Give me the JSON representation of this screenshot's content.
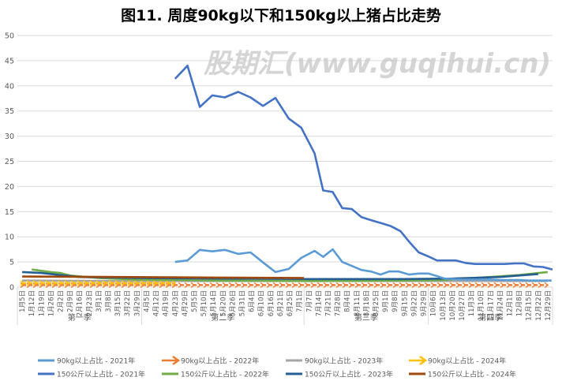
{
  "chart_data": {
    "type": "line",
    "title": "图11. 周度90kg以下和150kg以上猪占比走势",
    "xlabel": "",
    "ylabel": "",
    "ylim": [
      0,
      50
    ],
    "yticks": [
      0,
      5,
      10,
      15,
      20,
      25,
      30,
      35,
      40,
      45,
      50
    ],
    "grid": true,
    "legend_position": "bottom",
    "categories": [
      "1月5日",
      "1月12日",
      "1月19日",
      "1月26日",
      "2月2日",
      "2月9日",
      "2月16日",
      "2月23日",
      "3月1日",
      "3月8日",
      "3月15日",
      "3月22日",
      "3月29日",
      "4月5日",
      "4月12日",
      "4月19日",
      "4月23日",
      "4月29日",
      "5月5日",
      "5月10日",
      "5月14日",
      "5月20日",
      "5月26日",
      "5月31日",
      "6月4日",
      "6月10日",
      "6月16日",
      "6月21日",
      "6月25日",
      "7月1日",
      "7月7日",
      "7月14日",
      "7月21日",
      "7月28日",
      "8月4日",
      "8月11日",
      "8月18日",
      "8月25日",
      "9月1日",
      "9月8日",
      "9月15日",
      "9月22日",
      "9月29日",
      "10月6日",
      "10月13日",
      "10月20日",
      "10月27日",
      "11月3日",
      "11月10日",
      "11月17日",
      "11月24日",
      "12月1日",
      "12月8日",
      "12月15日",
      "12月22日",
      "12月29日"
    ],
    "quarters": [
      {
        "label": "第一季",
        "start": 0,
        "end": 13
      },
      {
        "label": "第二季",
        "start": 13,
        "end": 30
      },
      {
        "label": "第三季",
        "start": 30,
        "end": 43
      },
      {
        "label": "第四季",
        "start": 43,
        "end": 56
      }
    ],
    "series": [
      {
        "name": "90kg以上占比 - 2021年",
        "color": "#5b9bd5",
        "style": "line",
        "points": [
          [
            16,
            5.0
          ],
          [
            17.3,
            5.3
          ],
          [
            18.6,
            7.4
          ],
          [
            19.9,
            7.1
          ],
          [
            21.2,
            7.4
          ],
          [
            22.6,
            6.6
          ],
          [
            23.9,
            6.9
          ],
          [
            25.2,
            4.9
          ],
          [
            26.5,
            3.0
          ],
          [
            27.9,
            3.6
          ],
          [
            29.2,
            5.8
          ],
          [
            30.6,
            7.2
          ],
          [
            31.5,
            6.0
          ],
          [
            32.5,
            7.5
          ],
          [
            33.5,
            5.0
          ],
          [
            34.5,
            4.2
          ],
          [
            35.5,
            3.4
          ],
          [
            36.5,
            3.1
          ],
          [
            37.5,
            2.5
          ],
          [
            38.4,
            3.1
          ],
          [
            39.4,
            3.1
          ],
          [
            40.5,
            2.5
          ],
          [
            41.5,
            2.7
          ],
          [
            42.5,
            2.7
          ],
          [
            43.4,
            2.2
          ],
          [
            44.2,
            1.7
          ],
          [
            45,
            1.6
          ],
          [
            46,
            1.5
          ],
          [
            47,
            1.5
          ],
          [
            48,
            1.5
          ],
          [
            49,
            1.5
          ],
          [
            50,
            1.4
          ],
          [
            51,
            1.4
          ],
          [
            52,
            1.4
          ],
          [
            53,
            1.3
          ],
          [
            54,
            1.3
          ],
          [
            55.4,
            1.3
          ]
        ]
      },
      {
        "name": "90kg以上占比 - 2022年",
        "color": "#ed7d31",
        "style": "arrow",
        "points": [
          [
            0,
            0.4
          ],
          [
            5,
            0.4
          ],
          [
            10,
            0.4
          ],
          [
            15,
            0.4
          ],
          [
            20,
            0.4
          ],
          [
            25,
            0.4
          ],
          [
            30,
            0.4
          ],
          [
            35,
            0.4
          ],
          [
            40,
            0.4
          ],
          [
            45,
            0.4
          ],
          [
            50,
            0.4
          ],
          [
            55,
            0.4
          ]
        ]
      },
      {
        "name": "90kg以上占比 - 2023年",
        "color": "#a5a5a5",
        "style": "line",
        "points": [
          [
            0,
            1.3
          ],
          [
            10,
            1.2
          ],
          [
            20,
            1.2
          ],
          [
            30,
            1.2
          ],
          [
            40,
            1.2
          ],
          [
            50,
            1.2
          ],
          [
            55,
            1.2
          ]
        ]
      },
      {
        "name": "90kg以上占比 - 2024年",
        "color": "#ffc000",
        "style": "arrow",
        "points": [
          [
            0,
            0.8
          ],
          [
            4,
            0.8
          ],
          [
            8,
            0.8
          ],
          [
            12,
            0.8
          ],
          [
            16,
            0.8
          ]
        ]
      },
      {
        "name": "150公斤以上占比 - 2021年",
        "color": "#4472c4",
        "style": "line",
        "points": [
          [
            16,
            41.4
          ],
          [
            17.3,
            44.0
          ],
          [
            18.6,
            35.8
          ],
          [
            19.9,
            38.1
          ],
          [
            21.2,
            37.7
          ],
          [
            22.6,
            38.8
          ],
          [
            23.9,
            37.7
          ],
          [
            25.2,
            36.0
          ],
          [
            26.5,
            37.6
          ],
          [
            27.9,
            33.5
          ],
          [
            29.2,
            31.7
          ],
          [
            30.6,
            26.6
          ],
          [
            31.5,
            19.2
          ],
          [
            32.5,
            18.9
          ],
          [
            33.5,
            15.7
          ],
          [
            34.5,
            15.5
          ],
          [
            35.5,
            13.9
          ],
          [
            36.5,
            13.3
          ],
          [
            37.6,
            12.7
          ],
          [
            38.6,
            12.1
          ],
          [
            39.6,
            11.1
          ],
          [
            40.5,
            9.0
          ],
          [
            41.5,
            6.9
          ],
          [
            42.5,
            6.1
          ],
          [
            43.4,
            5.3
          ],
          [
            44.4,
            5.3
          ],
          [
            45.4,
            5.3
          ],
          [
            46.4,
            4.8
          ],
          [
            47.4,
            4.6
          ],
          [
            48.4,
            4.6
          ],
          [
            49.5,
            4.6
          ],
          [
            50.5,
            4.6
          ],
          [
            51.5,
            4.7
          ],
          [
            52.5,
            4.7
          ],
          [
            53.5,
            4.1
          ],
          [
            54.5,
            4.0
          ],
          [
            55.5,
            3.5
          ]
        ]
      },
      {
        "name": "150公斤以上占比 - 2022年",
        "color": "#70ad47",
        "style": "line",
        "points": [
          [
            1,
            3.5
          ],
          [
            3,
            3.0
          ],
          [
            4,
            2.8
          ],
          [
            5,
            2.3
          ],
          [
            8,
            1.8
          ],
          [
            12,
            1.5
          ],
          [
            20,
            1.3
          ],
          [
            30,
            1.2
          ],
          [
            40,
            1.3
          ],
          [
            44,
            1.4
          ],
          [
            48,
            1.9
          ],
          [
            52,
            2.4
          ],
          [
            55,
            3.0
          ]
        ]
      },
      {
        "name": "150公斤以上占比 - 2023年",
        "color": "#255e91",
        "style": "line",
        "points": [
          [
            0,
            3.0
          ],
          [
            2,
            2.8
          ],
          [
            4,
            2.4
          ],
          [
            6,
            2.0
          ],
          [
            12,
            1.8
          ],
          [
            20,
            1.7
          ],
          [
            30,
            1.6
          ],
          [
            40,
            1.6
          ],
          [
            45,
            1.7
          ],
          [
            50,
            2.0
          ],
          [
            54,
            2.6
          ]
        ]
      },
      {
        "name": "150公斤以上占比 - 2024年",
        "color": "#9e480e",
        "style": "line",
        "points": [
          [
            0,
            2.1
          ],
          [
            10,
            2.0
          ],
          [
            20,
            1.9
          ],
          [
            29.5,
            1.8
          ]
        ]
      }
    ]
  },
  "watermark": "股期汇(www.guqihui.cn)"
}
